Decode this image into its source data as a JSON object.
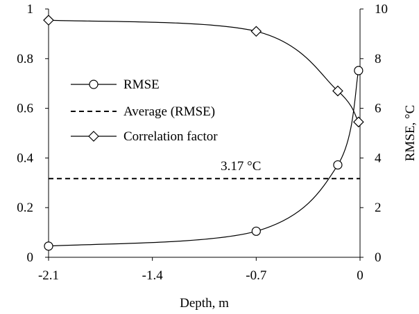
{
  "chart_data": {
    "type": "line",
    "xlabel": "Depth, m",
    "ylabel_left": "",
    "ylabel_right": "RMSE, °C",
    "xlim": [
      -2.1,
      0
    ],
    "xticks": [
      -2.1,
      -1.4,
      -0.7,
      0
    ],
    "xtick_labels": [
      "-2.1",
      "-1.4",
      "-0.7",
      "0"
    ],
    "ylim_left": [
      0,
      1
    ],
    "yticks_left_labels": [
      "0",
      "0.2",
      "0.4",
      "0.6",
      "0.8",
      "1"
    ],
    "ylim_right": [
      0,
      10
    ],
    "yticks_right_labels": [
      "0",
      "2",
      "4",
      "6",
      "8",
      "10"
    ],
    "grid": false,
    "legend_position": "middle-left",
    "series": [
      {
        "name": "RMSE",
        "axis": "right",
        "marker": "circle",
        "line_style": "solid",
        "x": [
          -2.1,
          -0.7,
          -0.15,
          -0.01
        ],
        "y": [
          0.45,
          1.05,
          3.72,
          7.52
        ]
      },
      {
        "name": "Average (RMSE)",
        "axis": "right",
        "marker": "none",
        "line_style": "dashed",
        "x": [
          -2.1,
          0
        ],
        "y": [
          3.17,
          3.17
        ]
      },
      {
        "name": "Correlation factor",
        "axis": "left",
        "marker": "diamond",
        "line_style": "solid",
        "x": [
          -2.1,
          -0.7,
          -0.15,
          -0.01
        ],
        "y": [
          0.955,
          0.91,
          0.67,
          0.545
        ]
      }
    ],
    "annotations": [
      {
        "text": "3.17 °C",
        "x": -0.85,
        "y_right": 3.17
      }
    ]
  }
}
